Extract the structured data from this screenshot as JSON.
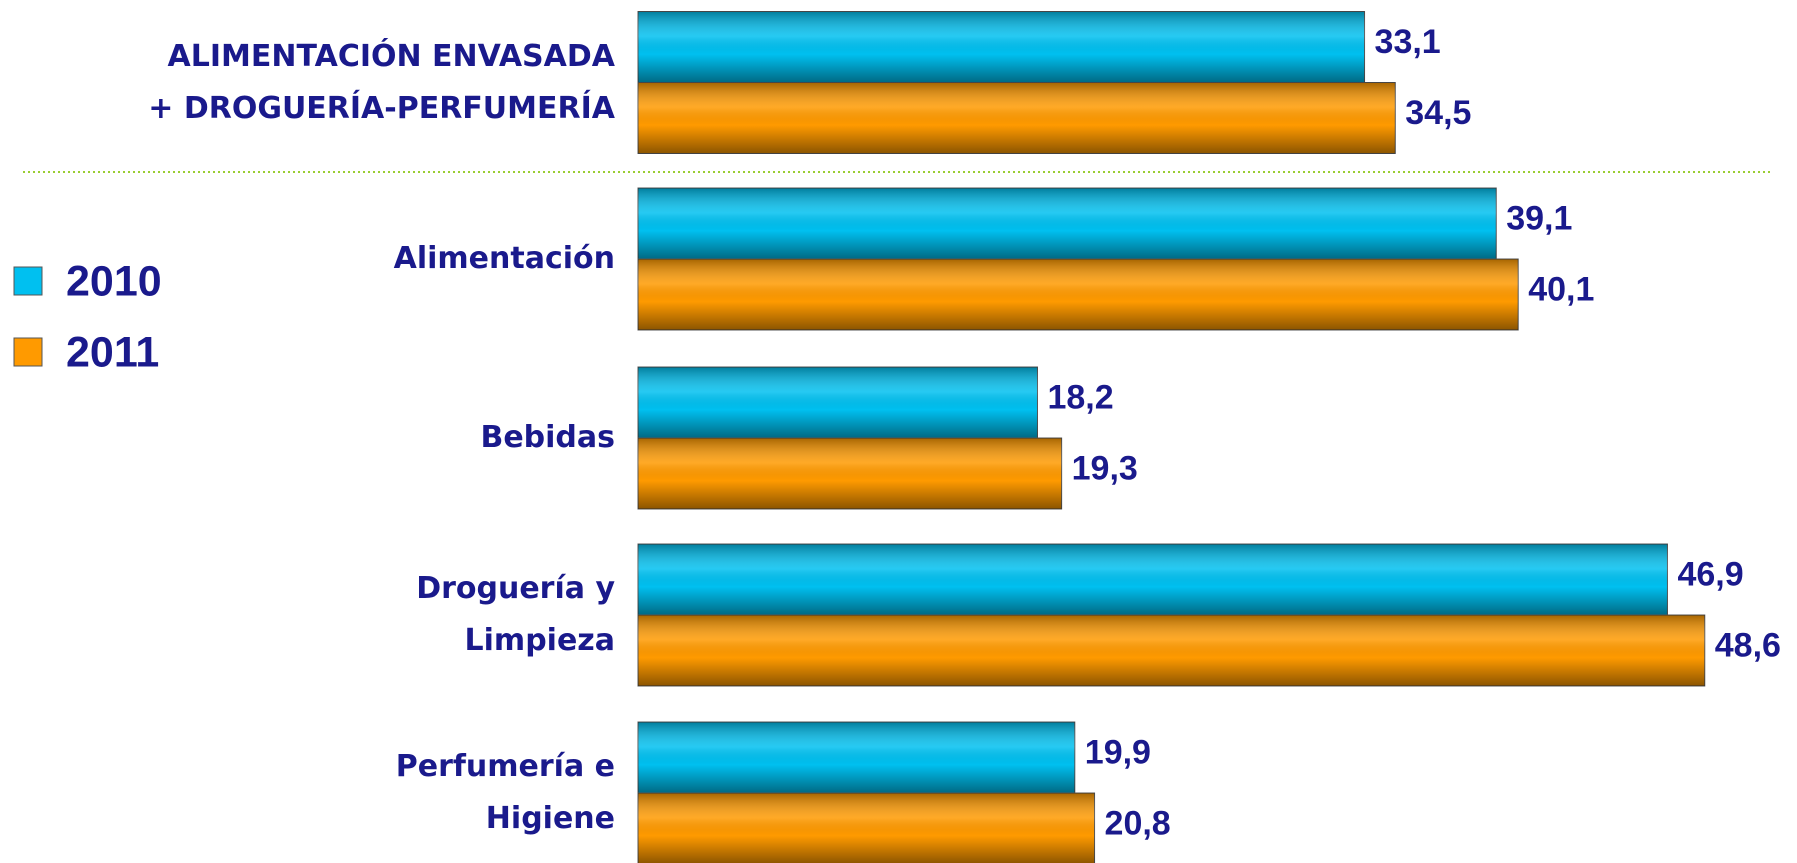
{
  "chart_data": {
    "type": "bar",
    "orientation": "horizontal",
    "categories": [
      "ALIMENTACIÓN ENVASADA\n+ DROGUERÍA-PERFUMERÍA",
      "Alimentación",
      "Bebidas",
      "Droguería y\nLimpieza",
      "Perfumería e\nHigiene"
    ],
    "series": [
      {
        "name": "2010",
        "color": "#00c0f0",
        "values": [
          33.1,
          39.1,
          18.2,
          46.9,
          19.9
        ],
        "value_labels": [
          "33,1",
          "39,1",
          "18,2",
          "46,9",
          "19,9"
        ]
      },
      {
        "name": "2011",
        "color": "#ff9a00",
        "values": [
          34.5,
          40.1,
          19.3,
          48.6,
          20.8
        ],
        "value_labels": [
          "34,5",
          "40,1",
          "19,3",
          "48,6",
          "20,8"
        ]
      }
    ],
    "legend": "left"
  }
}
